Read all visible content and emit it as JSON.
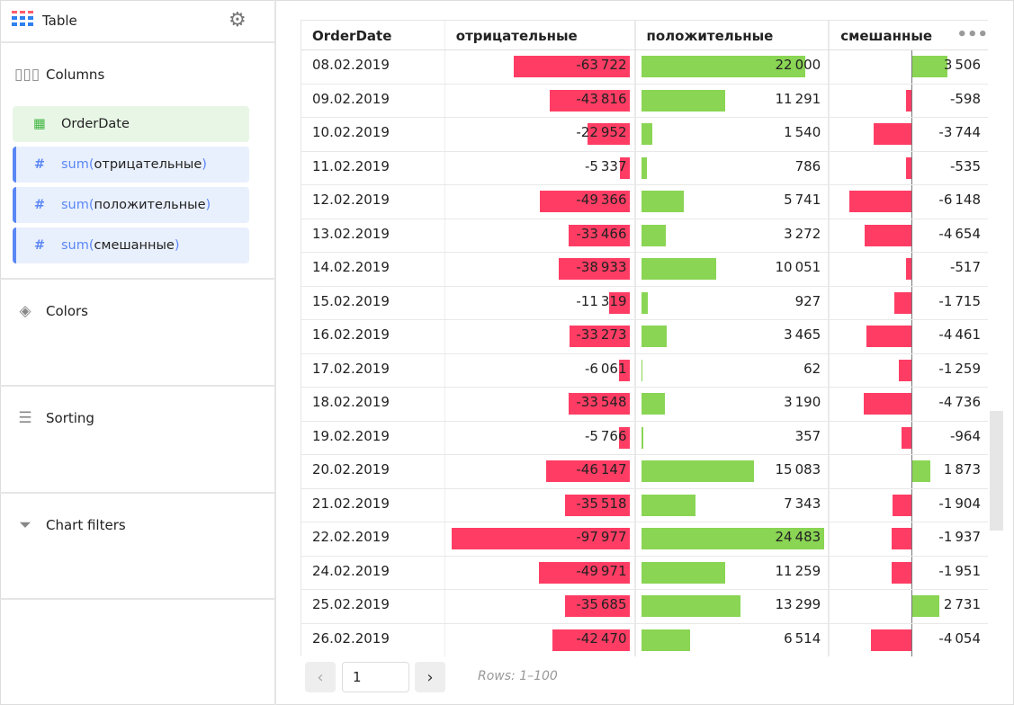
{
  "sidebar": {
    "title": "Table",
    "sections": {
      "columns": "Columns",
      "colors": "Colors",
      "sorting": "Sorting",
      "filters": "Chart filters"
    },
    "fields": [
      {
        "type": "dimension",
        "name": "OrderDate"
      },
      {
        "type": "measure",
        "fn": "sum(",
        "name": "отрицательные",
        "close": ")"
      },
      {
        "type": "measure",
        "fn": "sum(",
        "name": "положительные",
        "close": ")"
      },
      {
        "type": "measure",
        "fn": "sum(",
        "name": "смешанные",
        "close": ")"
      }
    ]
  },
  "table": {
    "columns": [
      "OrderDate",
      "отрицательные",
      "положительные",
      "смешанные"
    ],
    "colors": {
      "negative": "#ff3d64",
      "positive": "#8ad554"
    },
    "rows": [
      [
        "08.02.2019",
        -63722,
        22000,
        3506
      ],
      [
        "09.02.2019",
        -43816,
        11291,
        -598
      ],
      [
        "10.02.2019",
        -22952,
        1540,
        -3744
      ],
      [
        "11.02.2019",
        -5337,
        786,
        -535
      ],
      [
        "12.02.2019",
        -49366,
        5741,
        -6148
      ],
      [
        "13.02.2019",
        -33466,
        3272,
        -4654
      ],
      [
        "14.02.2019",
        -38933,
        10051,
        -517
      ],
      [
        "15.02.2019",
        -11319,
        927,
        -1715
      ],
      [
        "16.02.2019",
        -33273,
        3465,
        -4461
      ],
      [
        "17.02.2019",
        -6061,
        62,
        -1259
      ],
      [
        "18.02.2019",
        -33548,
        3190,
        -4736
      ],
      [
        "19.02.2019",
        -5766,
        357,
        -964
      ],
      [
        "20.02.2019",
        -46147,
        15083,
        1873
      ],
      [
        "21.02.2019",
        -35518,
        7343,
        -1904
      ],
      [
        "22.02.2019",
        -97977,
        24483,
        -1937
      ],
      [
        "24.02.2019",
        -49971,
        11259,
        -1951
      ],
      [
        "25.02.2019",
        -35685,
        13299,
        2731
      ],
      [
        "26.02.2019",
        -42470,
        6514,
        -4054
      ]
    ]
  },
  "pagination": {
    "page": "1",
    "rows_label": "Rows: 1–100"
  }
}
